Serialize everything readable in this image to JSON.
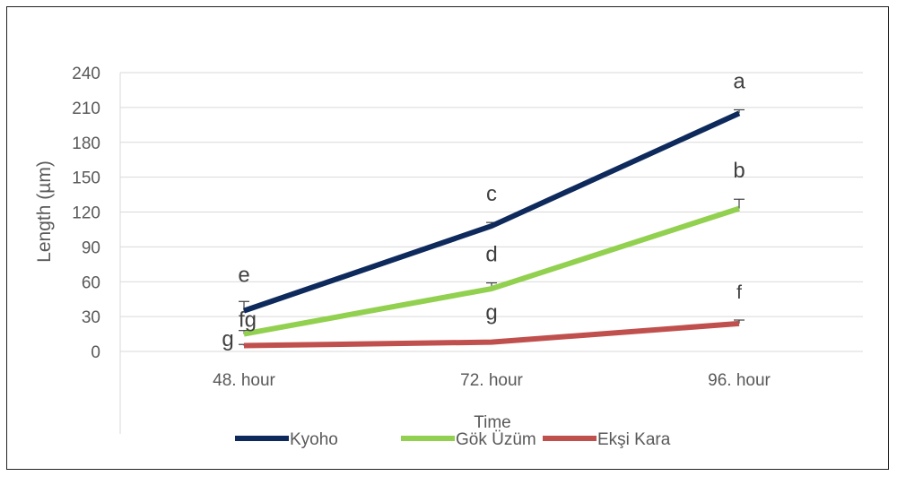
{
  "chart_data": {
    "type": "line",
    "xlabel": "Time",
    "ylabel": "Length (µm)",
    "categories": [
      "48. hour",
      "72. hour",
      "96. hour"
    ],
    "ylim": [
      0,
      240
    ],
    "yticks": [
      0,
      30,
      60,
      90,
      120,
      150,
      180,
      210,
      240
    ],
    "grid": true,
    "legend_position": "bottom",
    "series": [
      {
        "name": "Kyoho",
        "color": "#0e2a5c",
        "values": [
          35,
          108,
          205
        ],
        "error": [
          8,
          3,
          3
        ],
        "labels": [
          "e",
          "c",
          "a"
        ]
      },
      {
        "name": "Gök Üzüm",
        "color": "#92d050",
        "values": [
          15,
          54,
          123
        ],
        "error": [
          3,
          5,
          8
        ],
        "labels": [
          "fg",
          "d",
          "b"
        ]
      },
      {
        "name": "Ekşi Kara",
        "color": "#c0504d",
        "values": [
          5,
          8,
          24
        ],
        "error": [
          1,
          1,
          3
        ],
        "labels": [
          "g",
          "g",
          "f"
        ]
      }
    ]
  }
}
